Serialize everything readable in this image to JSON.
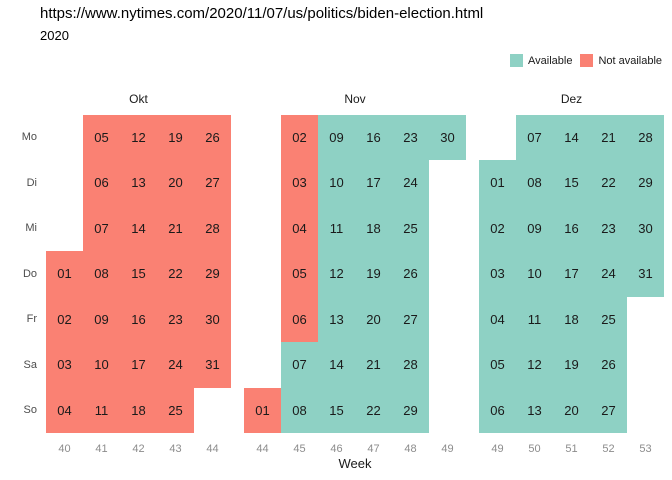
{
  "header": {
    "url_text": "https://www.nytimes.com/2020/11/07/us/politics/biden-election.html",
    "year_label": "2020"
  },
  "legend": {
    "items": [
      {
        "label": "Available",
        "status": "available"
      },
      {
        "label": "Not available",
        "status": "not_available"
      }
    ]
  },
  "colors": {
    "available": "#8ED1C4",
    "not_available": "#FA8173"
  },
  "chart_data": {
    "type": "heatmap",
    "title": "https://www.nytimes.com/2020/11/07/us/politics/biden-election.html",
    "subtitle": "2020",
    "xlabel": "Week",
    "ylabels": [
      "Mo",
      "Di",
      "Mi",
      "Do",
      "Fr",
      "Sa",
      "So"
    ],
    "legend": [
      "Available",
      "Not available"
    ],
    "legend_position": "top-right",
    "months": [
      {
        "label": "Okt",
        "weeks": [
          "40",
          "41",
          "42",
          "43",
          "44"
        ],
        "cells": [
          {
            "day": "05",
            "row": 0,
            "col": 1,
            "status": "not_available"
          },
          {
            "day": "12",
            "row": 0,
            "col": 2,
            "status": "not_available"
          },
          {
            "day": "19",
            "row": 0,
            "col": 3,
            "status": "not_available"
          },
          {
            "day": "26",
            "row": 0,
            "col": 4,
            "status": "not_available"
          },
          {
            "day": "06",
            "row": 1,
            "col": 1,
            "status": "not_available"
          },
          {
            "day": "13",
            "row": 1,
            "col": 2,
            "status": "not_available"
          },
          {
            "day": "20",
            "row": 1,
            "col": 3,
            "status": "not_available"
          },
          {
            "day": "27",
            "row": 1,
            "col": 4,
            "status": "not_available"
          },
          {
            "day": "07",
            "row": 2,
            "col": 1,
            "status": "not_available"
          },
          {
            "day": "14",
            "row": 2,
            "col": 2,
            "status": "not_available"
          },
          {
            "day": "21",
            "row": 2,
            "col": 3,
            "status": "not_available"
          },
          {
            "day": "28",
            "row": 2,
            "col": 4,
            "status": "not_available"
          },
          {
            "day": "01",
            "row": 3,
            "col": 0,
            "status": "not_available"
          },
          {
            "day": "08",
            "row": 3,
            "col": 1,
            "status": "not_available"
          },
          {
            "day": "15",
            "row": 3,
            "col": 2,
            "status": "not_available"
          },
          {
            "day": "22",
            "row": 3,
            "col": 3,
            "status": "not_available"
          },
          {
            "day": "29",
            "row": 3,
            "col": 4,
            "status": "not_available"
          },
          {
            "day": "02",
            "row": 4,
            "col": 0,
            "status": "not_available"
          },
          {
            "day": "09",
            "row": 4,
            "col": 1,
            "status": "not_available"
          },
          {
            "day": "16",
            "row": 4,
            "col": 2,
            "status": "not_available"
          },
          {
            "day": "23",
            "row": 4,
            "col": 3,
            "status": "not_available"
          },
          {
            "day": "30",
            "row": 4,
            "col": 4,
            "status": "not_available"
          },
          {
            "day": "03",
            "row": 5,
            "col": 0,
            "status": "not_available"
          },
          {
            "day": "10",
            "row": 5,
            "col": 1,
            "status": "not_available"
          },
          {
            "day": "17",
            "row": 5,
            "col": 2,
            "status": "not_available"
          },
          {
            "day": "24",
            "row": 5,
            "col": 3,
            "status": "not_available"
          },
          {
            "day": "31",
            "row": 5,
            "col": 4,
            "status": "not_available"
          },
          {
            "day": "04",
            "row": 6,
            "col": 0,
            "status": "not_available"
          },
          {
            "day": "11",
            "row": 6,
            "col": 1,
            "status": "not_available"
          },
          {
            "day": "18",
            "row": 6,
            "col": 2,
            "status": "not_available"
          },
          {
            "day": "25",
            "row": 6,
            "col": 3,
            "status": "not_available"
          }
        ]
      },
      {
        "label": "Nov",
        "weeks": [
          "44",
          "45",
          "46",
          "47",
          "48",
          "49"
        ],
        "cells": [
          {
            "day": "02",
            "row": 0,
            "col": 1,
            "status": "not_available"
          },
          {
            "day": "09",
            "row": 0,
            "col": 2,
            "status": "available"
          },
          {
            "day": "16",
            "row": 0,
            "col": 3,
            "status": "available"
          },
          {
            "day": "23",
            "row": 0,
            "col": 4,
            "status": "available"
          },
          {
            "day": "30",
            "row": 0,
            "col": 5,
            "status": "available"
          },
          {
            "day": "03",
            "row": 1,
            "col": 1,
            "status": "not_available"
          },
          {
            "day": "10",
            "row": 1,
            "col": 2,
            "status": "available"
          },
          {
            "day": "17",
            "row": 1,
            "col": 3,
            "status": "available"
          },
          {
            "day": "24",
            "row": 1,
            "col": 4,
            "status": "available"
          },
          {
            "day": "04",
            "row": 2,
            "col": 1,
            "status": "not_available"
          },
          {
            "day": "11",
            "row": 2,
            "col": 2,
            "status": "available"
          },
          {
            "day": "18",
            "row": 2,
            "col": 3,
            "status": "available"
          },
          {
            "day": "25",
            "row": 2,
            "col": 4,
            "status": "available"
          },
          {
            "day": "05",
            "row": 3,
            "col": 1,
            "status": "not_available"
          },
          {
            "day": "12",
            "row": 3,
            "col": 2,
            "status": "available"
          },
          {
            "day": "19",
            "row": 3,
            "col": 3,
            "status": "available"
          },
          {
            "day": "26",
            "row": 3,
            "col": 4,
            "status": "available"
          },
          {
            "day": "06",
            "row": 4,
            "col": 1,
            "status": "not_available"
          },
          {
            "day": "13",
            "row": 4,
            "col": 2,
            "status": "available"
          },
          {
            "day": "20",
            "row": 4,
            "col": 3,
            "status": "available"
          },
          {
            "day": "27",
            "row": 4,
            "col": 4,
            "status": "available"
          },
          {
            "day": "07",
            "row": 5,
            "col": 1,
            "status": "available"
          },
          {
            "day": "14",
            "row": 5,
            "col": 2,
            "status": "available"
          },
          {
            "day": "21",
            "row": 5,
            "col": 3,
            "status": "available"
          },
          {
            "day": "28",
            "row": 5,
            "col": 4,
            "status": "available"
          },
          {
            "day": "01",
            "row": 6,
            "col": 0,
            "status": "not_available"
          },
          {
            "day": "08",
            "row": 6,
            "col": 1,
            "status": "available"
          },
          {
            "day": "15",
            "row": 6,
            "col": 2,
            "status": "available"
          },
          {
            "day": "22",
            "row": 6,
            "col": 3,
            "status": "available"
          },
          {
            "day": "29",
            "row": 6,
            "col": 4,
            "status": "available"
          }
        ]
      },
      {
        "label": "Dez",
        "weeks": [
          "49",
          "50",
          "51",
          "52",
          "53"
        ],
        "cells": [
          {
            "day": "07",
            "row": 0,
            "col": 1,
            "status": "available"
          },
          {
            "day": "14",
            "row": 0,
            "col": 2,
            "status": "available"
          },
          {
            "day": "21",
            "row": 0,
            "col": 3,
            "status": "available"
          },
          {
            "day": "28",
            "row": 0,
            "col": 4,
            "status": "available"
          },
          {
            "day": "01",
            "row": 1,
            "col": 0,
            "status": "available"
          },
          {
            "day": "08",
            "row": 1,
            "col": 1,
            "status": "available"
          },
          {
            "day": "15",
            "row": 1,
            "col": 2,
            "status": "available"
          },
          {
            "day": "22",
            "row": 1,
            "col": 3,
            "status": "available"
          },
          {
            "day": "29",
            "row": 1,
            "col": 4,
            "status": "available"
          },
          {
            "day": "02",
            "row": 2,
            "col": 0,
            "status": "available"
          },
          {
            "day": "09",
            "row": 2,
            "col": 1,
            "status": "available"
          },
          {
            "day": "16",
            "row": 2,
            "col": 2,
            "status": "available"
          },
          {
            "day": "23",
            "row": 2,
            "col": 3,
            "status": "available"
          },
          {
            "day": "30",
            "row": 2,
            "col": 4,
            "status": "available"
          },
          {
            "day": "03",
            "row": 3,
            "col": 0,
            "status": "available"
          },
          {
            "day": "10",
            "row": 3,
            "col": 1,
            "status": "available"
          },
          {
            "day": "17",
            "row": 3,
            "col": 2,
            "status": "available"
          },
          {
            "day": "24",
            "row": 3,
            "col": 3,
            "status": "available"
          },
          {
            "day": "31",
            "row": 3,
            "col": 4,
            "status": "available"
          },
          {
            "day": "04",
            "row": 4,
            "col": 0,
            "status": "available"
          },
          {
            "day": "11",
            "row": 4,
            "col": 1,
            "status": "available"
          },
          {
            "day": "18",
            "row": 4,
            "col": 2,
            "status": "available"
          },
          {
            "day": "25",
            "row": 4,
            "col": 3,
            "status": "available"
          },
          {
            "day": "05",
            "row": 5,
            "col": 0,
            "status": "available"
          },
          {
            "day": "12",
            "row": 5,
            "col": 1,
            "status": "available"
          },
          {
            "day": "19",
            "row": 5,
            "col": 2,
            "status": "available"
          },
          {
            "day": "26",
            "row": 5,
            "col": 3,
            "status": "available"
          },
          {
            "day": "06",
            "row": 6,
            "col": 0,
            "status": "available"
          },
          {
            "day": "13",
            "row": 6,
            "col": 1,
            "status": "available"
          },
          {
            "day": "20",
            "row": 6,
            "col": 2,
            "status": "available"
          },
          {
            "day": "27",
            "row": 6,
            "col": 3,
            "status": "available"
          }
        ]
      }
    ]
  }
}
